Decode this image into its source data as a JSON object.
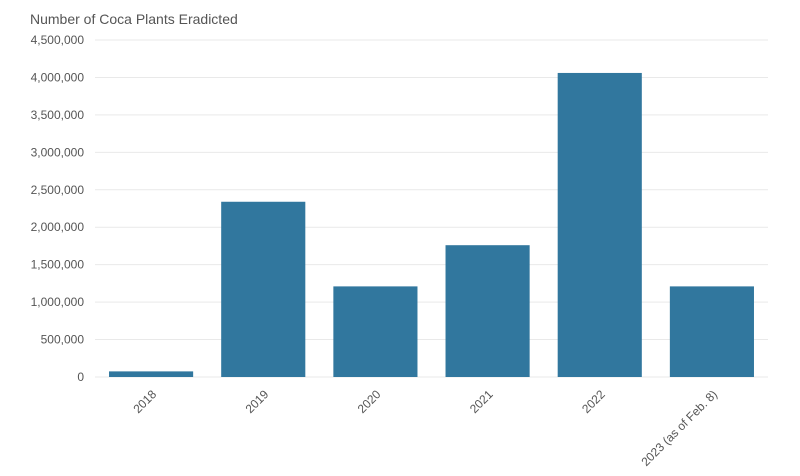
{
  "chart_data": {
    "type": "bar",
    "title": "Number of Coca Plants Eradicted",
    "xlabel": "",
    "ylabel": "",
    "categories": [
      "2018",
      "2019",
      "2020",
      "2021",
      "2022",
      "2023 (as of Feb. 8)"
    ],
    "values": [
      75000,
      2340000,
      1210000,
      1760000,
      4060000,
      1210000
    ],
    "ylim": [
      0,
      4500000
    ],
    "yticks": [
      0,
      500000,
      1000000,
      1500000,
      2000000,
      2500000,
      3000000,
      3500000,
      4000000,
      4500000
    ],
    "ytick_labels": [
      "0",
      "500,000",
      "1,000,000",
      "1,500,000",
      "2,000,000",
      "2,500,000",
      "3,000,000",
      "3,500,000",
      "4,000,000",
      "4,500,000"
    ],
    "grid": true,
    "bar_color": "#31779e"
  }
}
